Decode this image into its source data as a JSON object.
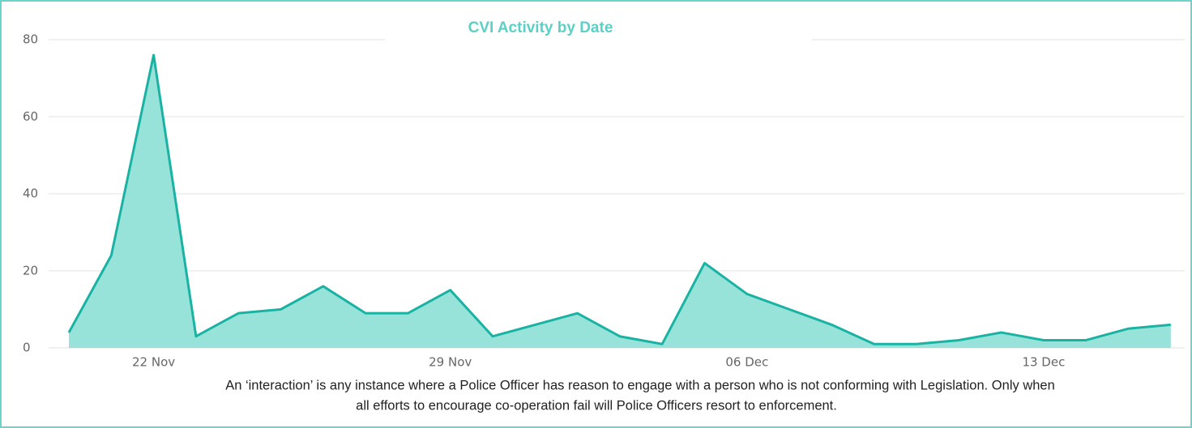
{
  "chart_data": {
    "type": "area",
    "title": "CVI Activity by Date",
    "categories": [
      null,
      null,
      "22 Nov",
      null,
      null,
      null,
      null,
      null,
      null,
      "29 Nov",
      null,
      null,
      null,
      null,
      null,
      null,
      "06 Dec",
      null,
      null,
      null,
      null,
      null,
      null,
      "13 Dec",
      null,
      null,
      null
    ],
    "series": [
      {
        "color": "#1ab3a3",
        "fill": "#97e3da",
        "values": [
          4,
          24,
          76,
          3,
          9,
          10,
          16,
          9,
          9,
          15,
          3,
          6,
          9,
          3,
          1,
          22,
          14,
          10,
          6,
          1,
          1,
          2,
          4,
          2,
          2,
          5,
          6
        ]
      }
    ],
    "ylim": [
      0,
      80
    ],
    "yticks": [
      0,
      20,
      40,
      60,
      80
    ],
    "grid": true,
    "note_lines": [
      "An ‘interaction’ is any instance where a Police Officer has reason to engage with a person who is not conforming with Legislation. Only when",
      "all efforts to encourage co-operation fail will Police Officers resort to enforcement."
    ]
  }
}
